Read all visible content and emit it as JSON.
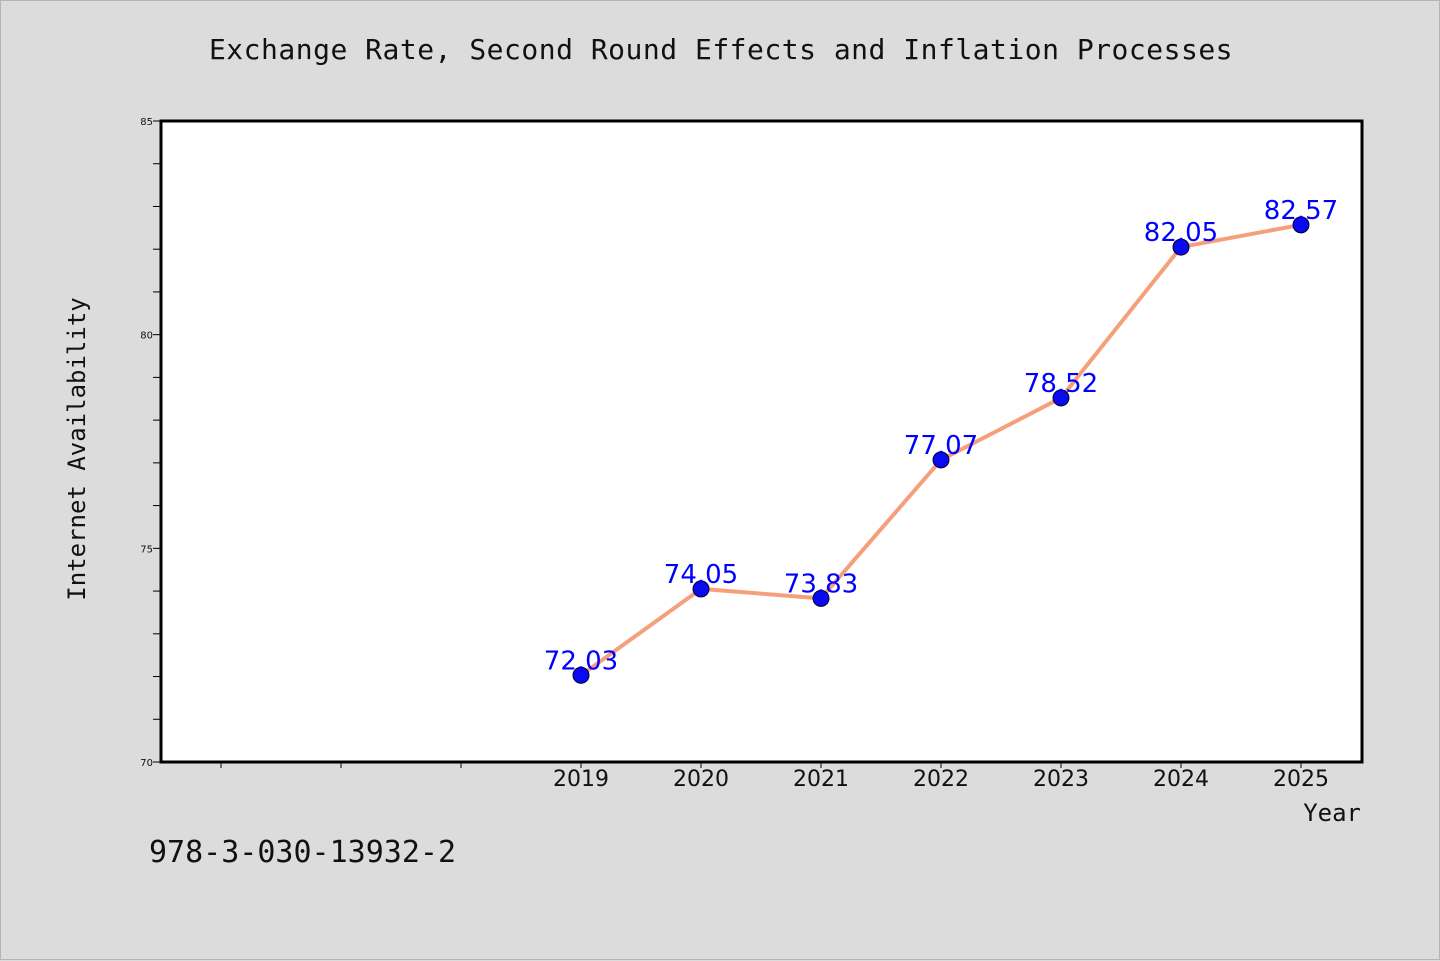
{
  "chart_data": {
    "type": "line",
    "title": "Exchange Rate, Second Round Effects and Inflation Processes",
    "xlabel": "Year",
    "ylabel": "Internet Availability",
    "categories": [
      "2019",
      "2020",
      "2021",
      "2022",
      "2023",
      "2024",
      "2025"
    ],
    "values": [
      72.03,
      74.05,
      73.83,
      77.07,
      78.52,
      82.05,
      82.57
    ],
    "value_labels": [
      "72.03",
      "74.05",
      "73.83",
      "77.07",
      "78.52",
      "82.05",
      "82.57"
    ],
    "y_ticks": [
      "70",
      "75",
      "80",
      "85"
    ],
    "ylim": [
      70,
      85
    ],
    "grid": false,
    "line_color": "#f5a07a",
    "marker_color": "#0a0aee",
    "label_color": "#0000ff"
  },
  "footer": {
    "code": "978-3-030-13932-2"
  }
}
